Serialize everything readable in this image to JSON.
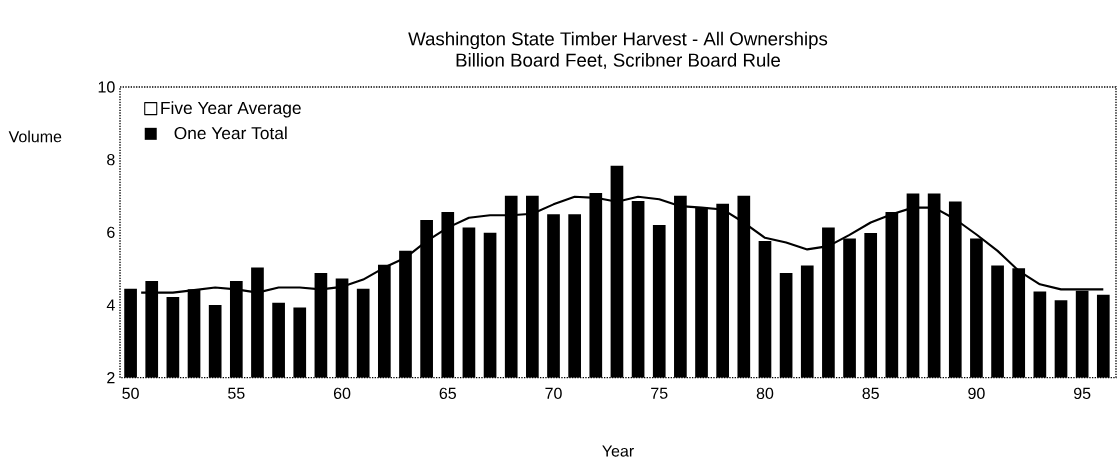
{
  "chart_data": {
    "type": "bar",
    "title": "Washington State Timber Harvest - All Ownerships",
    "subtitle": "Billion Board Feet, Scribner Board Rule",
    "xlabel": "Year",
    "ylabel": "Volume",
    "x": [
      50,
      51,
      52,
      53,
      54,
      55,
      56,
      57,
      58,
      59,
      60,
      61,
      62,
      63,
      64,
      65,
      66,
      67,
      68,
      69,
      70,
      71,
      72,
      73,
      74,
      75,
      76,
      77,
      78,
      79,
      80,
      81,
      82,
      83,
      84,
      85,
      86,
      87,
      88,
      89,
      90,
      91,
      92,
      93,
      94,
      95,
      96
    ],
    "series": [
      {
        "name": "One Year Total",
        "color": "#000000",
        "values": [
          4.45,
          4.66,
          4.22,
          4.43,
          4.0,
          4.66,
          5.03,
          4.06,
          3.93,
          4.88,
          4.73,
          4.45,
          5.11,
          5.49,
          6.34,
          6.56,
          6.13,
          5.99,
          7.01,
          7.01,
          6.5,
          6.5,
          7.08,
          7.83,
          6.86,
          6.2,
          7.01,
          6.68,
          6.79,
          7.01,
          5.76,
          4.88,
          5.09,
          6.13,
          5.83,
          5.98,
          6.56,
          7.07,
          7.07,
          6.85,
          5.83,
          5.09,
          5.01,
          4.37,
          4.13,
          4.39,
          4.28
        ]
      },
      {
        "name": "Five Year Average",
        "type": "line",
        "color": "#000000",
        "x": [
          50.5,
          51.5,
          52,
          53,
          54,
          55,
          56,
          57,
          58,
          59,
          60,
          61,
          62,
          63,
          64,
          65,
          66,
          67,
          68,
          69,
          70,
          71,
          72,
          73,
          74,
          75,
          76,
          77,
          78,
          79,
          80,
          81,
          82,
          83,
          84,
          85,
          86,
          87,
          88,
          89,
          90,
          91,
          92,
          93,
          94,
          95,
          96
        ],
        "values": [
          4.34,
          4.34,
          4.34,
          4.41,
          4.48,
          4.43,
          4.34,
          4.48,
          4.48,
          4.43,
          4.5,
          4.7,
          5.03,
          5.3,
          5.76,
          6.13,
          6.4,
          6.47,
          6.47,
          6.51,
          6.77,
          6.98,
          6.95,
          6.84,
          6.98,
          6.91,
          6.72,
          6.68,
          6.63,
          6.27,
          5.85,
          5.72,
          5.53,
          5.62,
          5.93,
          6.27,
          6.5,
          6.68,
          6.68,
          6.36,
          5.94,
          5.49,
          4.94,
          4.57,
          4.43,
          4.43,
          4.43
        ]
      }
    ],
    "xlim": [
      49.5,
      96.6
    ],
    "xticks": [
      50,
      55,
      60,
      65,
      70,
      75,
      80,
      85,
      90,
      95
    ],
    "ylim": [
      2,
      10
    ],
    "yticks": [
      2,
      4,
      6,
      8,
      10
    ],
    "legend": "top left"
  }
}
